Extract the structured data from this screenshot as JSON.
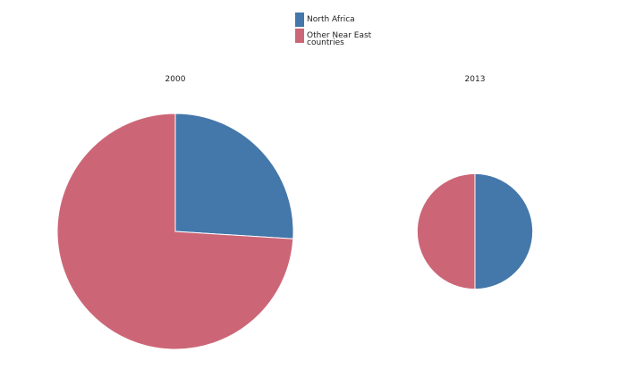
{
  "chart_data": {
    "type": "pie",
    "legend": {
      "placement": "top-center",
      "items": [
        {
          "label_lines": [
            "North Africa"
          ],
          "color": "#4477aa"
        },
        {
          "label_lines": [
            "Other Near East",
            "countries"
          ],
          "color": "#cc6677"
        }
      ]
    },
    "charts": [
      {
        "title": "2000",
        "slices": [
          {
            "label": "North Africa",
            "value": 26,
            "color": "#4477aa"
          },
          {
            "label": "Other Near East countries",
            "value": 74,
            "color": "#cc6677"
          }
        ],
        "relative_size": 1.0
      },
      {
        "title": "2013",
        "slices": [
          {
            "label": "North Africa",
            "value": 50,
            "color": "#4477aa"
          },
          {
            "label": "Other Near East countries",
            "value": 50,
            "color": "#cc6677"
          }
        ],
        "relative_size": 0.49
      }
    ]
  }
}
